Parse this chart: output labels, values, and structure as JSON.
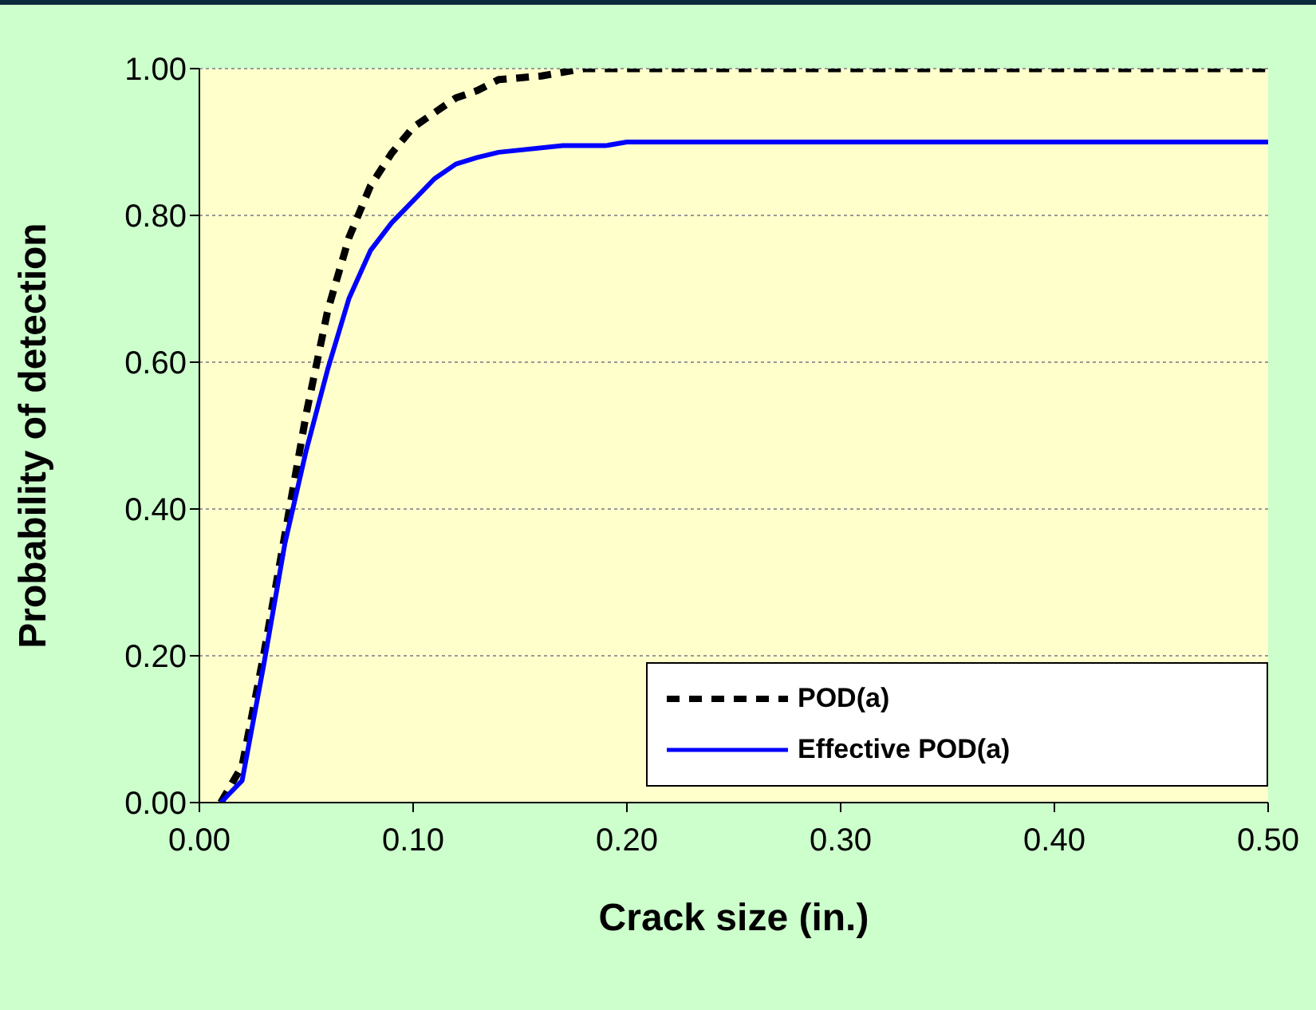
{
  "chart_data": {
    "type": "line",
    "xlabel": "Crack size (in.)",
    "ylabel": "Probability of detection",
    "series": [
      {
        "name": "POD(a)",
        "color": "#000000",
        "line_style": "dashed",
        "x": [
          0.01,
          0.02,
          0.03,
          0.04,
          0.05,
          0.06,
          0.07,
          0.08,
          0.09,
          0.1,
          0.11,
          0.12,
          0.13,
          0.14,
          0.16,
          0.18,
          0.2,
          0.5
        ],
        "values": [
          0,
          0.05,
          0.2,
          0.365,
          0.53,
          0.67,
          0.77,
          0.84,
          0.885,
          0.92,
          0.94,
          0.96,
          0.97,
          0.985,
          0.99,
          1,
          1,
          1
        ]
      },
      {
        "name": "Effective POD(a)",
        "color": "#0000ff",
        "line_style": "solid",
        "x": [
          0.01,
          0.02,
          0.03,
          0.04,
          0.05,
          0.06,
          0.07,
          0.08,
          0.09,
          0.1,
          0.11,
          0.12,
          0.13,
          0.14,
          0.17,
          0.19,
          0.2,
          0.5
        ],
        "values": [
          0,
          0.03,
          0.186,
          0.353,
          0.48,
          0.59,
          0.687,
          0.752,
          0.79,
          0.82,
          0.85,
          0.87,
          0.879,
          0.886,
          0.895,
          0.895,
          0.9,
          0.9
        ]
      }
    ],
    "xlim": [
      0,
      0.5
    ],
    "xticks": [
      {
        "value": 0,
        "label": "0.00"
      },
      {
        "value": 0.1,
        "label": "0.10"
      },
      {
        "value": 0.2,
        "label": "0.20"
      },
      {
        "value": 0.3,
        "label": "0.30"
      },
      {
        "value": 0.4,
        "label": "0.40"
      },
      {
        "value": 0.5,
        "label": "0.50"
      }
    ],
    "ylim": [
      0,
      1
    ],
    "yticks": [
      {
        "value": 0,
        "label": "0.00"
      },
      {
        "value": 0.2,
        "label": "0.20"
      },
      {
        "value": 0.4,
        "label": "0.40"
      },
      {
        "value": 0.6,
        "label": "0.60"
      },
      {
        "value": 0.8,
        "label": "0.80"
      },
      {
        "value": 1,
        "label": "1.00"
      }
    ],
    "grid": "y",
    "legend": "bottom right",
    "marker": "none"
  }
}
